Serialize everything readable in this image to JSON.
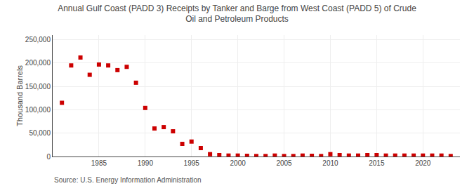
{
  "chart_data": {
    "type": "scatter",
    "title": "Annual Gulf Coast (PADD 3) Receipts by Tanker and Barge from West Coast (PADD 5) of Crude\nOil and Petroleum Products",
    "ylabel": "Thousand Barrels",
    "annotations": [
      "Source: U.S. Energy Information Administration"
    ],
    "x": [
      1981,
      1982,
      1983,
      1984,
      1985,
      1986,
      1987,
      1988,
      1989,
      1990,
      1991,
      1992,
      1993,
      1994,
      1995,
      1996,
      1997,
      1998,
      1999,
      2000,
      2001,
      2002,
      2003,
      2004,
      2005,
      2006,
      2007,
      2008,
      2009,
      2010,
      2011,
      2012,
      2013,
      2014,
      2015,
      2016,
      2017,
      2018,
      2019,
      2020,
      2021,
      2022,
      2023
    ],
    "values": [
      115000,
      195000,
      212000,
      175000,
      197000,
      195000,
      185000,
      192000,
      158000,
      104000,
      60000,
      63000,
      54000,
      27000,
      32000,
      18000,
      5000,
      3000,
      2000,
      2000,
      1500,
      1000,
      1000,
      2000,
      1000,
      1000,
      2000,
      1500,
      1000,
      5000,
      3000,
      2000,
      2000,
      3000,
      3000,
      2000,
      2000,
      2000,
      2000,
      2000,
      2000,
      2000,
      1000
    ],
    "color": "#cc0000",
    "marker": "square",
    "xlim": [
      1980,
      2024
    ],
    "xticks": [
      1985,
      1990,
      1995,
      2000,
      2005,
      2010,
      2015,
      2020
    ],
    "ylim": [
      0,
      260000
    ],
    "yticks": [
      0,
      {
        "value": 50000,
        "label": "50,000"
      },
      {
        "value": 100000,
        "label": "100,000"
      },
      {
        "value": 150000,
        "label": "150,000"
      },
      {
        "value": 200000,
        "label": "200,000"
      },
      {
        "value": 250000,
        "label": "250,000"
      }
    ],
    "grid": true
  }
}
